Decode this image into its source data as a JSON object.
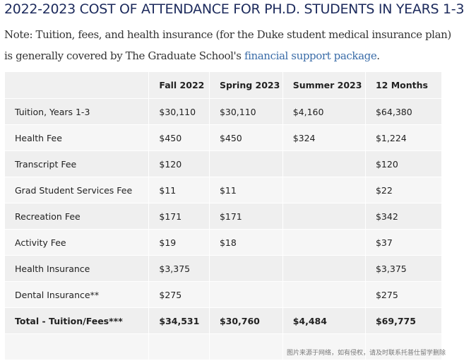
{
  "title": "2022-2023 COST OF ATTENDANCE FOR PH.D. STUDENTS IN YEARS 1-3",
  "note": {
    "text": "Note: Tuition, fees, and health insurance (for the Duke student medical insurance plan) is generally covered by The Graduate School's ",
    "link": "financial support package",
    "end": "."
  },
  "table": {
    "headers": [
      "",
      "Fall 2022",
      "Spring 2023",
      "Summer 2023",
      "12 Months"
    ],
    "rows": [
      [
        "Tuition, Years 1-3",
        "$30,110",
        "$30,110",
        "$4,160",
        "$64,380"
      ],
      [
        "Health Fee",
        "$450",
        "$450",
        "$324",
        "$1,224"
      ],
      [
        "Transcript Fee",
        "$120",
        "",
        "",
        "$120"
      ],
      [
        "Grad Student Services Fee",
        "$11",
        "$11",
        "",
        "$22"
      ],
      [
        "Recreation Fee",
        "$171",
        "$171",
        "",
        "$342"
      ],
      [
        "Activity Fee",
        "$19",
        "$18",
        "",
        "$37"
      ],
      [
        "Health Insurance",
        "$3,375",
        "",
        "",
        "$3,375"
      ],
      [
        "Dental Insurance**",
        "$275",
        "",
        "",
        "$275"
      ],
      [
        "Total - Tuition/Fees***",
        "$34,531",
        "$30,760",
        "$4,484",
        "$69,775"
      ],
      [
        "",
        "",
        "",
        "",
        ""
      ]
    ]
  },
  "watermark": "图片来源于网络，如有侵权，请及时联系托普仕留学删除"
}
